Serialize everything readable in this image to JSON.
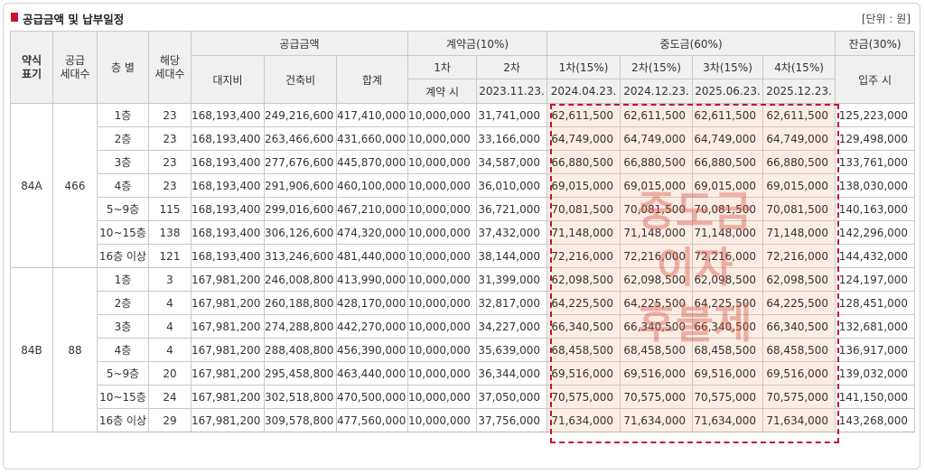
{
  "title": "공급금액 및 납부일정",
  "unit": "[단위 : 원]",
  "headers": {
    "type": "약식\n표기",
    "supply_units": "공급\n세대수",
    "floor": "층 별",
    "units": "해당\n세대수",
    "supply_amount": "공급금액",
    "land": "대지비",
    "building": "건축비",
    "total": "합계",
    "contract": "계약금(10%)",
    "c1": "1차",
    "c2": "2차",
    "c1_when": "계약 시",
    "c2_date": "2023.11.23.",
    "middle": "중도금(60%)",
    "m1": "1차(15%)",
    "m2": "2차(15%)",
    "m3": "3차(15%)",
    "m4": "4차(15%)",
    "m1_date": "2024.04.23.",
    "m2_date": "2024.12.23.",
    "m3_date": "2025.06.23.",
    "m4_date": "2025.12.23.",
    "balance": "잔금(30%)",
    "balance_when": "입주 시"
  },
  "groups": [
    {
      "type": "84A",
      "supply_units": "466",
      "rows": [
        {
          "floor": "1층",
          "units": "23",
          "land": "168,193,400",
          "building": "249,216,600",
          "total": "417,410,000",
          "c1": "10,000,000",
          "c2": "31,741,000",
          "m1": "62,611,500",
          "m2": "62,611,500",
          "m3": "62,611,500",
          "m4": "62,611,500",
          "balance": "125,223,000"
        },
        {
          "floor": "2층",
          "units": "23",
          "land": "168,193,400",
          "building": "263,466,600",
          "total": "431,660,000",
          "c1": "10,000,000",
          "c2": "33,166,000",
          "m1": "64,749,000",
          "m2": "64,749,000",
          "m3": "64,749,000",
          "m4": "64,749,000",
          "balance": "129,498,000"
        },
        {
          "floor": "3층",
          "units": "23",
          "land": "168,193,400",
          "building": "277,676,600",
          "total": "445,870,000",
          "c1": "10,000,000",
          "c2": "34,587,000",
          "m1": "66,880,500",
          "m2": "66,880,500",
          "m3": "66,880,500",
          "m4": "66,880,500",
          "balance": "133,761,000"
        },
        {
          "floor": "4층",
          "units": "23",
          "land": "168,193,400",
          "building": "291,906,600",
          "total": "460,100,000",
          "c1": "10,000,000",
          "c2": "36,010,000",
          "m1": "69,015,000",
          "m2": "69,015,000",
          "m3": "69,015,000",
          "m4": "69,015,000",
          "balance": "138,030,000"
        },
        {
          "floor": "5~9층",
          "units": "115",
          "land": "168,193,400",
          "building": "299,016,600",
          "total": "467,210,000",
          "c1": "10,000,000",
          "c2": "36,721,000",
          "m1": "70,081,500",
          "m2": "70,081,500",
          "m3": "70,081,500",
          "m4": "70,081,500",
          "balance": "140,163,000"
        },
        {
          "floor": "10~15층",
          "units": "138",
          "land": "168,193,400",
          "building": "306,126,600",
          "total": "474,320,000",
          "c1": "10,000,000",
          "c2": "37,432,000",
          "m1": "71,148,000",
          "m2": "71,148,000",
          "m3": "71,148,000",
          "m4": "71,148,000",
          "balance": "142,296,000"
        },
        {
          "floor": "16층 이상",
          "units": "121",
          "land": "168,193,400",
          "building": "313,246,600",
          "total": "481,440,000",
          "c1": "10,000,000",
          "c2": "38,144,000",
          "m1": "72,216,000",
          "m2": "72,216,000",
          "m3": "72,216,000",
          "m4": "72,216,000",
          "balance": "144,432,000"
        }
      ]
    },
    {
      "type": "84B",
      "supply_units": "88",
      "rows": [
        {
          "floor": "1층",
          "units": "3",
          "land": "167,981,200",
          "building": "246,008,800",
          "total": "413,990,000",
          "c1": "10,000,000",
          "c2": "31,399,000",
          "m1": "62,098,500",
          "m2": "62,098,500",
          "m3": "62,098,500",
          "m4": "62,098,500",
          "balance": "124,197,000"
        },
        {
          "floor": "2층",
          "units": "4",
          "land": "167,981,200",
          "building": "260,188,800",
          "total": "428,170,000",
          "c1": "10,000,000",
          "c2": "32,817,000",
          "m1": "64,225,500",
          "m2": "64,225,500",
          "m3": "64,225,500",
          "m4": "64,225,500",
          "balance": "128,451,000"
        },
        {
          "floor": "3층",
          "units": "4",
          "land": "167,981,200",
          "building": "274,288,800",
          "total": "442,270,000",
          "c1": "10,000,000",
          "c2": "34,227,000",
          "m1": "66,340,500",
          "m2": "66,340,500",
          "m3": "66,340,500",
          "m4": "66,340,500",
          "balance": "132,681,000"
        },
        {
          "floor": "4층",
          "units": "4",
          "land": "167,981,200",
          "building": "288,408,800",
          "total": "456,390,000",
          "c1": "10,000,000",
          "c2": "35,639,000",
          "m1": "68,458,500",
          "m2": "68,458,500",
          "m3": "68,458,500",
          "m4": "68,458,500",
          "balance": "136,917,000"
        },
        {
          "floor": "5~9층",
          "units": "20",
          "land": "167,981,200",
          "building": "295,458,800",
          "total": "463,440,000",
          "c1": "10,000,000",
          "c2": "36,344,000",
          "m1": "69,516,000",
          "m2": "69,516,000",
          "m3": "69,516,000",
          "m4": "69,516,000",
          "balance": "139,032,000"
        },
        {
          "floor": "10~15층",
          "units": "24",
          "land": "167,981,200",
          "building": "302,518,800",
          "total": "470,500,000",
          "c1": "10,000,000",
          "c2": "37,050,000",
          "m1": "70,575,000",
          "m2": "70,575,000",
          "m3": "70,575,000",
          "m4": "70,575,000",
          "balance": "141,150,000"
        },
        {
          "floor": "16층 이상",
          "units": "29",
          "land": "167,981,200",
          "building": "309,578,800",
          "total": "477,560,000",
          "c1": "10,000,000",
          "c2": "37,756,000",
          "m1": "71,634,000",
          "m2": "71,634,000",
          "m3": "71,634,000",
          "m4": "71,634,000",
          "balance": "143,268,000"
        }
      ]
    }
  ],
  "watermark": [
    "중도금",
    "이자",
    "후불제"
  ],
  "colors": {
    "accent": "#c8102e",
    "header_bg": "#f0f0f0",
    "highlight_bg": "#fdece3",
    "watermark": "#d65846"
  }
}
